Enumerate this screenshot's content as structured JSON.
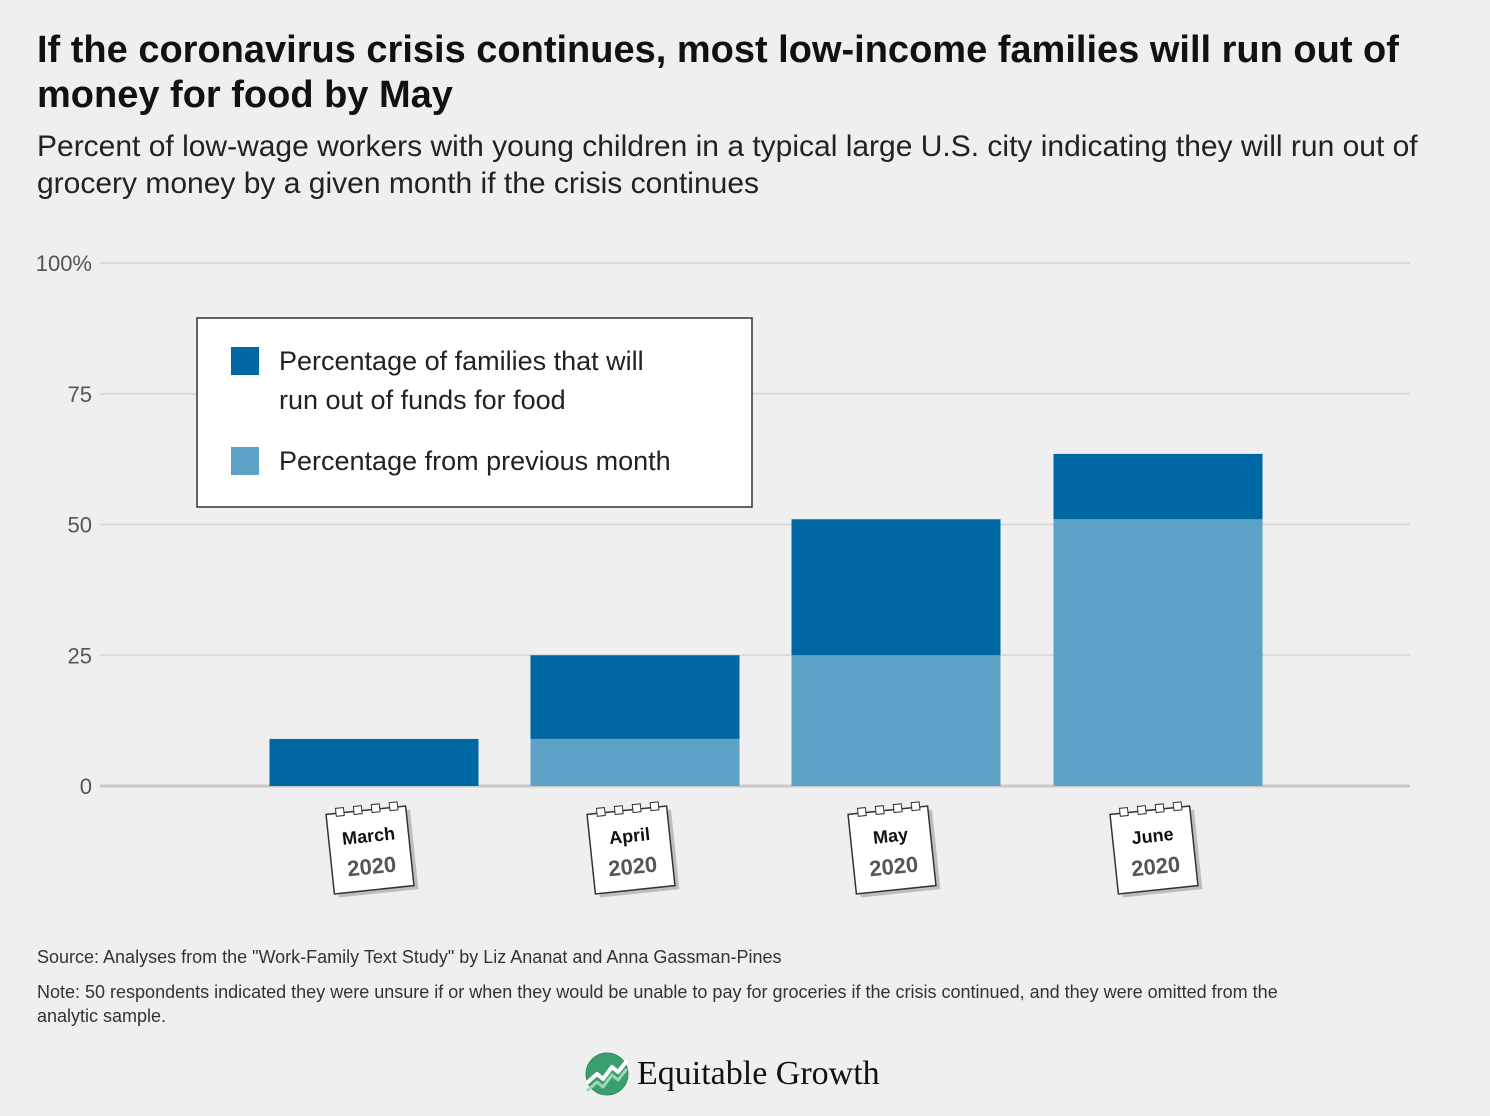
{
  "header": {
    "title": "If the coronavirus crisis continues, most low-income families will run out of money for food by May",
    "subtitle": "Percent of low-wage workers with young children in a typical large U.S. city indicating they will run out of grocery money by a given month if the crisis continues"
  },
  "chart_data": {
    "type": "bar",
    "stacked": true,
    "categories": [
      "March",
      "April",
      "May",
      "June"
    ],
    "category_years": [
      "2020",
      "2020",
      "2020",
      "2020"
    ],
    "series": [
      {
        "name": "Percentage from previous month",
        "values": [
          0,
          9,
          25,
          51
        ],
        "color": "#5fa2c8"
      },
      {
        "name": "Percentage of families that will run out of funds for food",
        "values": [
          9,
          16,
          26,
          12.5
        ],
        "color": "#0067a5"
      }
    ],
    "totals": [
      9,
      25,
      51,
      63.5
    ],
    "ylim": [
      0,
      100
    ],
    "yticks": [
      0,
      25,
      50,
      75,
      100
    ],
    "ytick_labels": [
      "0",
      "25",
      "50",
      "75",
      "100%"
    ],
    "grid": true,
    "legend_position": "top-left"
  },
  "legend": {
    "items": [
      {
        "label_lines": [
          "Percentage of families that will",
          "run out of funds for food"
        ],
        "color": "#0067a5"
      },
      {
        "label_lines": [
          "Percentage from previous month"
        ],
        "color": "#5fa2c8"
      }
    ]
  },
  "footer": {
    "source": "Source: Analyses from the \"Work-Family Text Study\" by Liz Ananat and Anna Gassman-Pines",
    "note": "Note: 50 respondents indicated they were unsure if or when they would be unable to pay for groceries if the crisis continued, and they were omitted from the analytic sample.",
    "brand": "Equitable Growth",
    "brand_logo_icon": "growth-globe-icon"
  }
}
